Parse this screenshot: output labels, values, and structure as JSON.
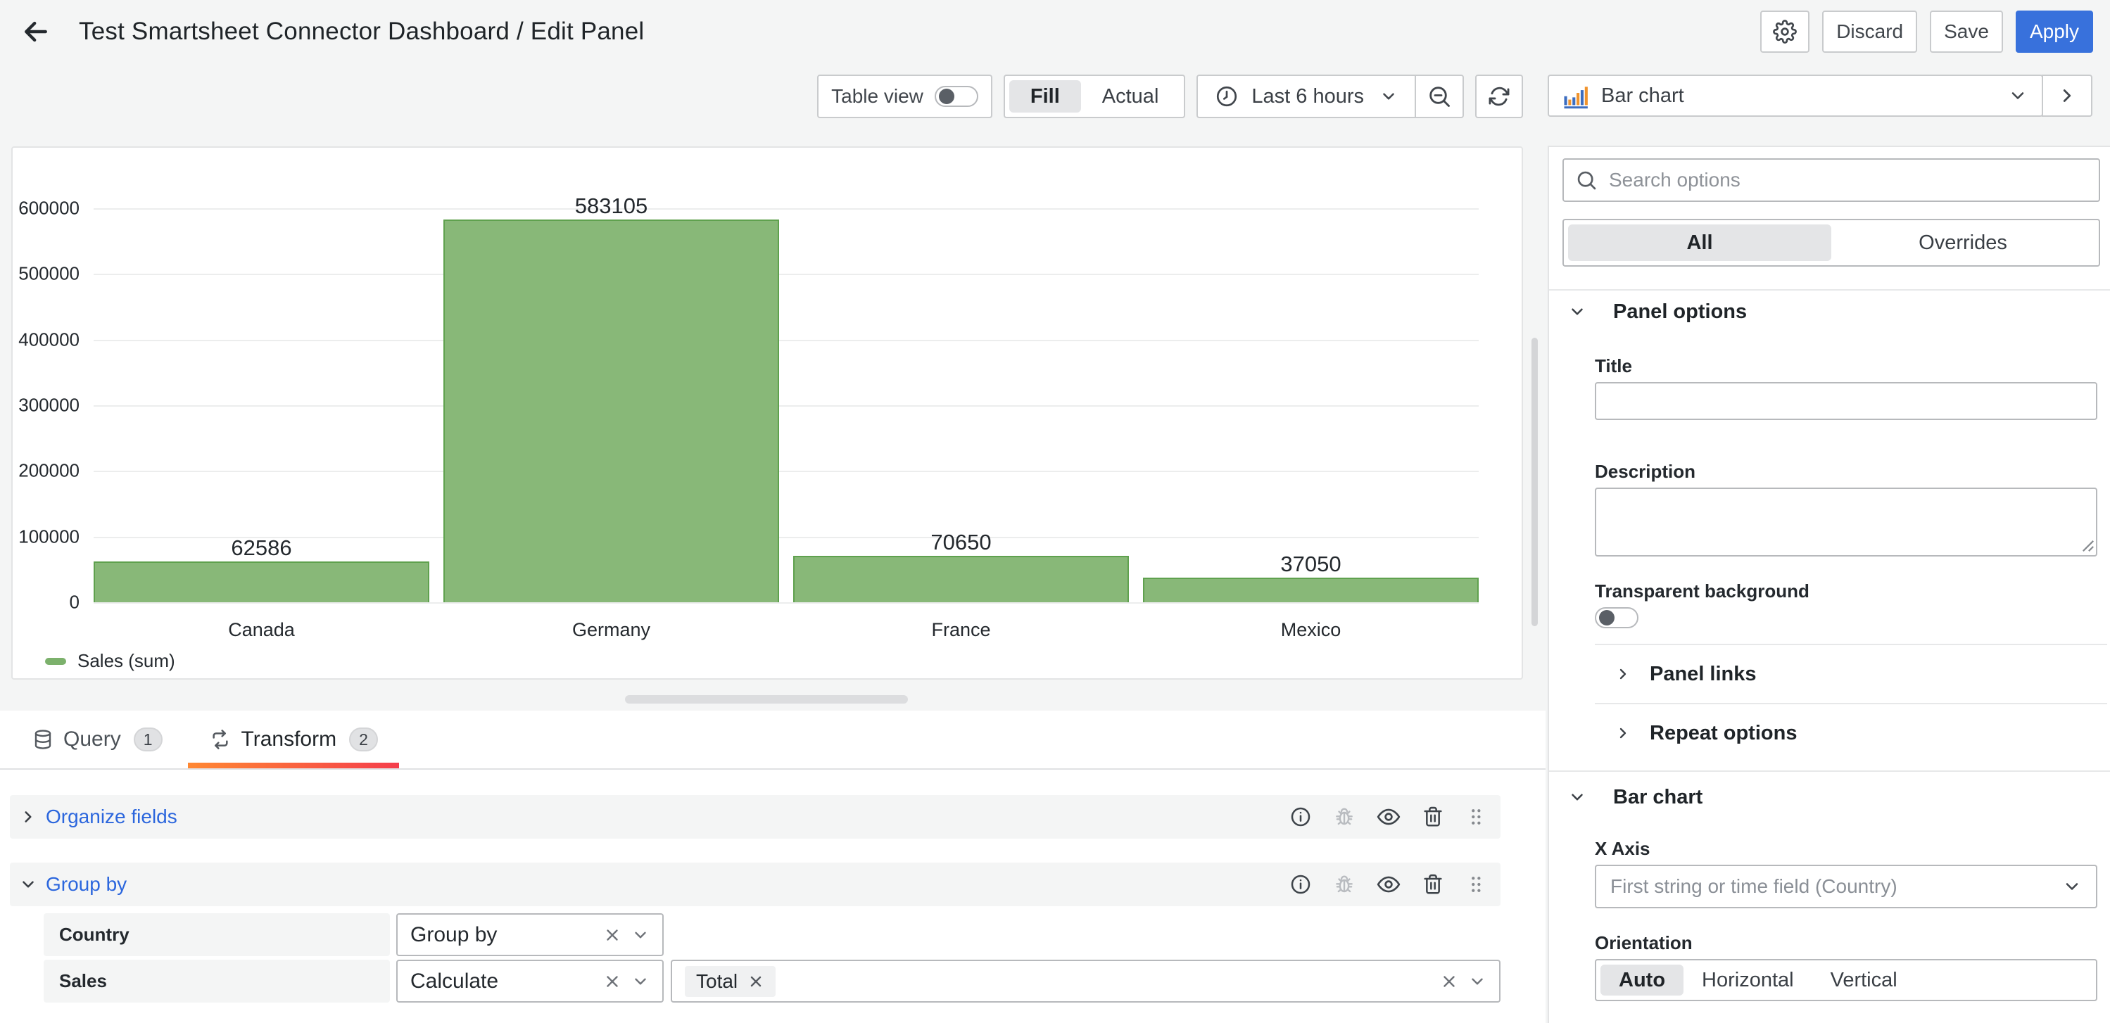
{
  "header": {
    "title": "Test Smartsheet Connector Dashboard / Edit Panel",
    "discard_label": "Discard",
    "save_label": "Save",
    "apply_label": "Apply"
  },
  "toolbar": {
    "table_view_label": "Table view",
    "fill_label": "Fill",
    "actual_label": "Actual",
    "time_range_label": "Last 6 hours"
  },
  "chart_data": {
    "type": "bar",
    "categories": [
      "Canada",
      "Germany",
      "France",
      "Mexico"
    ],
    "values": [
      62586,
      583105,
      70650,
      37050
    ],
    "series": [
      {
        "name": "Sales (sum)",
        "values": [
          62586,
          583105,
          70650,
          37050
        ]
      }
    ],
    "title": "",
    "xlabel": "",
    "ylabel": "",
    "ylim": [
      0,
      600000
    ],
    "y_ticks": [
      0,
      100000,
      200000,
      300000,
      400000,
      500000,
      600000
    ],
    "grid": true,
    "legend_position": "bottom-left",
    "legend_label": "Sales (sum)",
    "bar_fill_color": "#88b878",
    "bar_border_color": "#5fa14e",
    "legend_color": "#7cb16c"
  },
  "tabs": {
    "query_label": "Query",
    "query_count": "1",
    "transform_label": "Transform",
    "transform_count": "2"
  },
  "transform": {
    "row1_title": "Organize fields",
    "row2_title": "Group by",
    "field1_name": "Country",
    "field1_op": "Group by",
    "field2_name": "Sales",
    "field2_op": "Calculate",
    "field2_chip": "Total"
  },
  "sidebar": {
    "viz_name": "Bar chart",
    "search_placeholder": "Search options",
    "filter_all": "All",
    "filter_overrides": "Overrides",
    "panel_options_title": "Panel options",
    "title_label": "Title",
    "title_value": "",
    "description_label": "Description",
    "description_value": "",
    "transparent_label": "Transparent background",
    "panel_links_title": "Panel links",
    "repeat_options_title": "Repeat options",
    "barchart_section_title": "Bar chart",
    "x_axis_label": "X Axis",
    "x_axis_value": "First string or time field (Country)",
    "orientation_label": "Orientation",
    "orientation_auto": "Auto",
    "orientation_horizontal": "Horizontal",
    "orientation_vertical": "Vertical"
  }
}
